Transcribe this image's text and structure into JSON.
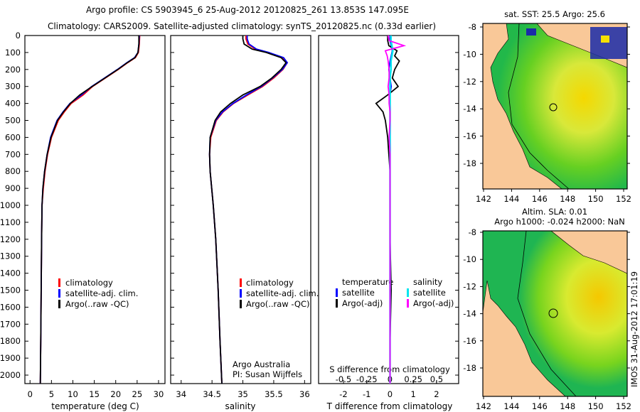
{
  "title": {
    "line1": "Argo profile: CS 5903945_6 25-Aug-2012 20120825_261 13.853S 147.095E",
    "line2": "Climatology: CARS2009. Satellite-adjusted climatology: synTS_20120825.nc (0.33d earlier)"
  },
  "colors": {
    "climatology": "#ff0000",
    "satellite": "#0000ff",
    "argo": "#000000",
    "sal_satellite": "#00e5ee",
    "sal_argo": "#ff00ff",
    "land": "#f9c898"
  },
  "chart_data": [
    {
      "type": "line",
      "xlabel": "temperature (deg C)",
      "ylabel": "depth",
      "xlim": [
        -1.2,
        31.5
      ],
      "ylim": [
        2050,
        0
      ],
      "xticks": [
        0,
        5,
        10,
        15,
        20,
        25,
        30
      ],
      "yticks": [
        0,
        100,
        200,
        300,
        400,
        500,
        600,
        700,
        800,
        900,
        1000,
        1100,
        1200,
        1300,
        1400,
        1500,
        1600,
        1700,
        1800,
        1900,
        2000
      ],
      "depth": [
        0,
        50,
        100,
        130,
        160,
        200,
        250,
        300,
        350,
        400,
        450,
        500,
        600,
        700,
        800,
        900,
        1000,
        1200,
        1500,
        1800,
        2050
      ],
      "series": [
        {
          "name": "climatology",
          "values": [
            25.6,
            25.5,
            25.3,
            24.6,
            22.8,
            20.6,
            17.6,
            14.6,
            12.4,
            9.6,
            8.0,
            6.6,
            5.0,
            4.1,
            3.5,
            3.1,
            2.8,
            2.7,
            2.6,
            2.5,
            2.4
          ]
        },
        {
          "name": "satellite-adj. clim.",
          "values": [
            25.5,
            25.4,
            25.2,
            24.4,
            22.6,
            20.4,
            17.4,
            14.4,
            12.0,
            9.3,
            7.7,
            6.3,
            4.8,
            4.0,
            3.4,
            3.0,
            2.8,
            2.7,
            2.6,
            2.5,
            2.4
          ]
        },
        {
          "name": "Argo(..raw -QC)",
          "values": [
            25.4,
            25.4,
            25.2,
            24.5,
            22.7,
            20.5,
            17.5,
            14.5,
            11.6,
            9.4,
            7.8,
            6.4,
            4.9,
            4.0,
            3.4,
            3.0,
            2.8,
            2.7,
            2.6,
            2.5,
            2.4
          ]
        }
      ],
      "legend": [
        "climatology",
        "satellite-adj. clim.",
        "Argo(..raw -QC)"
      ]
    },
    {
      "type": "line",
      "xlabel": "salinity",
      "xlim": [
        33.83,
        36.1
      ],
      "ylim": [
        2050,
        0
      ],
      "xticks": [
        34,
        34.5,
        35,
        35.5,
        36
      ],
      "depth": [
        0,
        20,
        50,
        80,
        100,
        130,
        160,
        200,
        250,
        300,
        350,
        400,
        450,
        500,
        600,
        700,
        800,
        1000,
        1200,
        1500,
        1800,
        2050
      ],
      "series": [
        {
          "name": "climatology",
          "values": [
            35.05,
            35.05,
            35.08,
            35.2,
            35.4,
            35.65,
            35.72,
            35.65,
            35.5,
            35.32,
            35.08,
            34.85,
            34.68,
            34.57,
            34.48,
            34.46,
            34.47,
            34.52,
            34.56,
            34.6,
            34.63,
            34.66
          ]
        },
        {
          "name": "satellite-adj. clim.",
          "values": [
            35.07,
            35.07,
            35.1,
            35.22,
            35.42,
            35.66,
            35.72,
            35.64,
            35.48,
            35.3,
            35.06,
            34.84,
            34.67,
            34.56,
            34.47,
            34.46,
            34.47,
            34.52,
            34.56,
            34.6,
            34.63,
            34.66
          ]
        },
        {
          "name": "Argo(..raw -QC)",
          "values": [
            35.0,
            35.0,
            35.02,
            35.15,
            35.38,
            35.62,
            35.7,
            35.62,
            35.47,
            35.28,
            35.0,
            34.8,
            34.64,
            34.55,
            34.47,
            34.46,
            34.47,
            34.52,
            34.56,
            34.6,
            34.63,
            34.66
          ]
        }
      ],
      "legend": [
        "climatology",
        "satellite-adj. clim.",
        "Argo(..raw -QC)"
      ],
      "annotation": [
        "Argo Australia",
        "PI: Susan Wijffels"
      ]
    },
    {
      "type": "line",
      "xlabel": "T difference from climatology",
      "xlabel2": "S difference from climatology",
      "xlim": [
        -3.07,
        2.95
      ],
      "ylim": [
        2050,
        0
      ],
      "xticks": [
        -2,
        -1,
        0,
        1,
        2
      ],
      "xticks2": [
        -0.5,
        -0.25,
        0,
        0.25,
        0.5
      ],
      "xticks2_labels": [
        "-0.5",
        "-0.25",
        "0",
        "0.25",
        "0.5"
      ],
      "depth": [
        0,
        30,
        60,
        90,
        120,
        150,
        200,
        250,
        300,
        350,
        400,
        450,
        500,
        600,
        700,
        800,
        1000,
        1200,
        1500,
        1800,
        2050
      ],
      "series": [
        {
          "name": "temperature satellite",
          "axis": "T",
          "values": [
            0,
            0,
            0.05,
            0.1,
            0.05,
            0,
            -0.05,
            0,
            0.05,
            0,
            0,
            0,
            0,
            0,
            0,
            0,
            0,
            0,
            0,
            0,
            0
          ]
        },
        {
          "name": "temperature Argo(-adj)",
          "axis": "T",
          "values": [
            -0.1,
            -0.1,
            -0.05,
            0.3,
            0.2,
            0.4,
            0.2,
            0.1,
            0.35,
            -0.1,
            -0.6,
            -0.3,
            -0.2,
            -0.1,
            -0.05,
            0,
            0,
            0,
            0.05,
            0,
            0
          ]
        },
        {
          "name": "salinity satellite",
          "axis": "S",
          "values": [
            0.01,
            0.01,
            0.02,
            0.03,
            0.02,
            0.01,
            0.01,
            0,
            0,
            0,
            0,
            0,
            0,
            0,
            0,
            0,
            0,
            0,
            0,
            0,
            0
          ]
        },
        {
          "name": "salinity Argo(-adj)",
          "axis": "S",
          "values": [
            -0.02,
            -0.01,
            0.15,
            -0.05,
            -0.03,
            -0.02,
            -0.01,
            -0.01,
            -0.02,
            -0.01,
            -0.01,
            0,
            0,
            -0.01,
            0,
            0,
            0,
            0,
            0,
            0,
            0
          ]
        }
      ],
      "legend_headers": [
        "temperature",
        "salinity"
      ],
      "legend": [
        "satellite",
        "Argo(-adj)",
        "satellite",
        "Argo(-adj)"
      ]
    }
  ],
  "maps": [
    {
      "title": "sat. SST: 25.5 Argo: 25.6",
      "lat_ticks": [
        "-8",
        "-10",
        "-12",
        "-14",
        "-16",
        "-18"
      ],
      "lon_ticks": [
        "142",
        "144",
        "146",
        "148",
        "150",
        "152"
      ]
    },
    {
      "title1": "Altim. SLA: 0.01",
      "title2": "Argo h1000: -0.024 h2000: NaN",
      "lat_ticks": [
        "-8",
        "-10",
        "-12",
        "-14",
        "-16",
        "-18"
      ],
      "lon_ticks": [
        "142",
        "144",
        "146",
        "148",
        "150",
        "152"
      ]
    }
  ],
  "footer": "IMOS 31-Aug-2012 17:01:19"
}
